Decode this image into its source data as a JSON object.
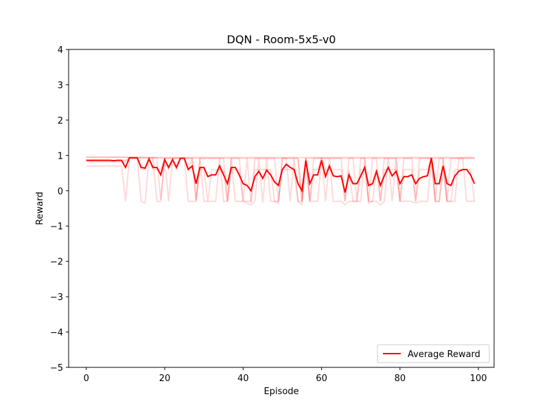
{
  "chart_data": {
    "type": "line",
    "title": "DQN - Room-5x5-v0",
    "xlabel": "Episode",
    "ylabel": "Reward",
    "xlim": [
      -4.5,
      104
    ],
    "ylim": [
      -5,
      4
    ],
    "xticks": [
      0,
      20,
      40,
      60,
      80,
      100
    ],
    "yticks": [
      -5,
      -4,
      -3,
      -2,
      -1,
      0,
      1,
      2,
      3,
      4
    ],
    "grid": false,
    "legend_position": "lower-right",
    "colors": {
      "average": "#ff0000",
      "runs": "#ffb3b3"
    },
    "series": [
      {
        "name": "Average Reward",
        "role": "average",
        "x_start": 0,
        "values": [
          0.86,
          0.86,
          0.86,
          0.86,
          0.86,
          0.86,
          0.86,
          0.85,
          0.86,
          0.86,
          0.66,
          0.93,
          0.93,
          0.93,
          0.66,
          0.64,
          0.9,
          0.66,
          0.66,
          0.45,
          0.88,
          0.66,
          0.88,
          0.66,
          0.92,
          0.92,
          0.6,
          0.7,
          0.2,
          0.66,
          0.66,
          0.4,
          0.45,
          0.45,
          0.7,
          0.45,
          0.2,
          0.66,
          0.66,
          0.45,
          0.2,
          0.15,
          0.0,
          0.4,
          0.55,
          0.35,
          0.58,
          0.45,
          0.25,
          0.15,
          0.6,
          0.75,
          0.66,
          0.6,
          0.2,
          0.0,
          0.85,
          0.2,
          0.45,
          0.45,
          0.86,
          0.4,
          0.7,
          0.42,
          0.4,
          0.42,
          -0.05,
          0.45,
          0.2,
          0.2,
          0.42,
          0.66,
          0.15,
          0.2,
          0.55,
          0.15,
          0.42,
          0.66,
          0.42,
          0.55,
          0.2,
          0.4,
          0.4,
          0.45,
          0.2,
          0.35,
          0.4,
          0.42,
          0.93,
          0.2,
          0.2,
          0.7,
          0.2,
          0.15,
          0.42,
          0.55,
          0.6,
          0.6,
          0.45,
          0.2
        ]
      },
      {
        "role": "run",
        "x_start": 0,
        "values": [
          0.95,
          0.95,
          0.95,
          0.95,
          0.95,
          0.95,
          0.95,
          0.95,
          0.95,
          0.95,
          0.95,
          0.95,
          0.95,
          0.95,
          0.95,
          0.94,
          0.94,
          0.94,
          0.94,
          0.94,
          0.94,
          0.94,
          0.94,
          0.94,
          0.94,
          0.94,
          0.94,
          0.94,
          0.94,
          0.94,
          0.94,
          0.94,
          0.94,
          0.94,
          0.94,
          0.94,
          0.94,
          0.94,
          0.94,
          0.94,
          0.94,
          0.94,
          0.94,
          0.94,
          0.94,
          0.94,
          0.94,
          0.94,
          0.94,
          0.94,
          0.94,
          0.94,
          0.94,
          0.94,
          0.94,
          0.94,
          0.94,
          0.94,
          0.94,
          0.94,
          0.94,
          0.94,
          0.94,
          0.94,
          0.94,
          0.94,
          0.94,
          0.94,
          0.94,
          0.94,
          0.94,
          0.94,
          0.94,
          0.94,
          0.94,
          0.94,
          0.94,
          0.94,
          0.94,
          0.94,
          0.94,
          0.94,
          0.94,
          0.94,
          0.94,
          0.94,
          0.94,
          0.94,
          0.94,
          0.94,
          0.94,
          0.94,
          0.94,
          0.94,
          0.94,
          0.94,
          0.94,
          0.94,
          0.94,
          0.94
        ]
      },
      {
        "role": "run",
        "x_start": 0,
        "values": [
          0.82,
          0.82,
          0.82,
          0.82,
          0.82,
          0.82,
          0.82,
          0.82,
          0.82,
          0.82,
          0.82,
          0.93,
          0.93,
          0.93,
          0.93,
          0.93,
          0.93,
          0.93,
          0.93,
          -0.25,
          0.92,
          0.92,
          0.92,
          0.92,
          0.92,
          0.92,
          0.92,
          0.92,
          0.92,
          0.92,
          0.92,
          0.92,
          0.92,
          0.92,
          0.92,
          0.92,
          -0.3,
          0.92,
          0.92,
          0.92,
          0.92,
          0.92,
          0.92,
          0.92,
          0.92,
          0.92,
          0.92,
          0.92,
          0.92,
          0.92,
          0.92,
          0.92,
          0.92,
          0.92,
          0.92,
          -0.3,
          0.92,
          0.92,
          0.92,
          0.92,
          0.92,
          0.92,
          0.92,
          0.92,
          0.92,
          0.92,
          0.92,
          0.92,
          0.92,
          0.92,
          0.92,
          0.92,
          0.92,
          0.92,
          0.92,
          0.92,
          0.92,
          0.92,
          0.92,
          0.92,
          0.92,
          0.92,
          0.92,
          0.92,
          0.92,
          0.92,
          0.92,
          0.92,
          0.92,
          0.92,
          0.92,
          0.92,
          0.92,
          0.92,
          0.92,
          0.92,
          0.92,
          0.92,
          0.92,
          0.92
        ]
      },
      {
        "role": "run",
        "x_start": 0,
        "values": [
          0.7,
          0.7,
          0.7,
          0.7,
          0.7,
          0.7,
          0.7,
          0.7,
          0.7,
          0.7,
          -0.3,
          0.93,
          0.93,
          0.93,
          -0.3,
          -0.35,
          0.93,
          0.93,
          -0.3,
          -0.3,
          0.92,
          -0.3,
          0.92,
          0.92,
          0.92,
          0.92,
          -0.3,
          -0.3,
          -0.3,
          0.92,
          -0.3,
          -0.3,
          -0.3,
          -0.3,
          0.92,
          -0.3,
          -0.3,
          0.92,
          -0.3,
          -0.3,
          -0.3,
          -0.35,
          -0.4,
          -0.3,
          0.92,
          -0.35,
          0.92,
          -0.3,
          -0.3,
          -0.35,
          0.92,
          0.92,
          -0.3,
          0.92,
          -0.3,
          -0.4,
          0.92,
          -0.3,
          -0.3,
          -0.3,
          0.92,
          -0.3,
          0.92,
          -0.3,
          -0.3,
          -0.3,
          -0.4,
          -0.3,
          -0.3,
          -0.3,
          -0.3,
          0.92,
          -0.35,
          -0.3,
          -0.3,
          -0.4,
          -0.3,
          0.92,
          -0.3,
          0.92,
          -0.3,
          -0.3,
          -0.3,
          -0.3,
          -0.35,
          -0.3,
          -0.3,
          -0.3,
          0.92,
          -0.3,
          -0.3,
          0.92,
          -0.3,
          -0.3,
          -0.3,
          0.92,
          0.92,
          -0.3,
          -0.3,
          -0.3
        ]
      },
      {
        "role": "run",
        "x_start": 0,
        "values": [
          0.95,
          0.95,
          0.95,
          0.95,
          0.95,
          0.95,
          0.95,
          0.95,
          0.95,
          0.95,
          0.95,
          0.93,
          0.93,
          0.93,
          0.93,
          0.93,
          0.93,
          0.93,
          0.93,
          0.93,
          0.92,
          0.92,
          0.92,
          0.92,
          0.92,
          0.92,
          0.92,
          0.92,
          -0.25,
          0.92,
          0.92,
          0.92,
          0.92,
          0.92,
          0.92,
          0.92,
          0.92,
          0.92,
          0.92,
          0.92,
          -0.3,
          0.92,
          -0.35,
          0.92,
          0.92,
          0.92,
          0.92,
          0.92,
          0.92,
          -0.3,
          0.92,
          0.92,
          0.92,
          0.92,
          0.92,
          -0.3,
          0.92,
          -0.3,
          0.92,
          0.92,
          0.92,
          0.92,
          0.92,
          0.92,
          0.92,
          0.92,
          -0.3,
          0.92,
          0.92,
          -0.3,
          0.92,
          0.92,
          -0.3,
          0.92,
          0.92,
          -0.3,
          0.92,
          0.92,
          0.92,
          0.92,
          -0.3,
          0.92,
          0.92,
          0.92,
          -0.3,
          0.92,
          0.92,
          0.92,
          0.92,
          -0.3,
          0.92,
          0.92,
          -0.3,
          0.92,
          0.92,
          0.92,
          0.92,
          0.92,
          0.92,
          0.92
        ]
      },
      {
        "role": "run",
        "x_start": 0,
        "values": [
          0.86,
          0.86,
          0.86,
          0.86,
          0.86,
          0.86,
          0.86,
          0.85,
          0.86,
          0.86,
          0.86,
          0.93,
          0.93,
          0.93,
          0.6,
          0.6,
          0.9,
          0.6,
          0.6,
          0.6,
          0.9,
          0.6,
          0.9,
          0.6,
          0.92,
          0.92,
          0.6,
          0.92,
          -0.3,
          0.6,
          0.6,
          -0.3,
          0.6,
          0.6,
          0.6,
          0.6,
          -0.3,
          0.6,
          0.6,
          0.6,
          -0.3,
          -0.3,
          -0.3,
          0.6,
          0.6,
          0.6,
          0.6,
          0.6,
          -0.3,
          -0.3,
          0.6,
          0.6,
          0.6,
          0.6,
          -0.3,
          -0.3,
          0.92,
          -0.3,
          0.6,
          0.6,
          0.92,
          0.6,
          0.6,
          0.6,
          0.6,
          0.6,
          -0.3,
          0.6,
          -0.3,
          -0.3,
          0.6,
          0.6,
          -0.3,
          -0.3,
          0.6,
          -0.3,
          0.6,
          0.6,
          0.6,
          0.6,
          -0.3,
          0.6,
          0.6,
          0.6,
          -0.3,
          0.6,
          0.6,
          0.6,
          0.92,
          -0.3,
          -0.3,
          0.6,
          -0.3,
          -0.3,
          0.6,
          0.6,
          0.6,
          0.6,
          0.6,
          -0.3
        ]
      }
    ]
  },
  "legend": {
    "label": "Average Reward"
  }
}
